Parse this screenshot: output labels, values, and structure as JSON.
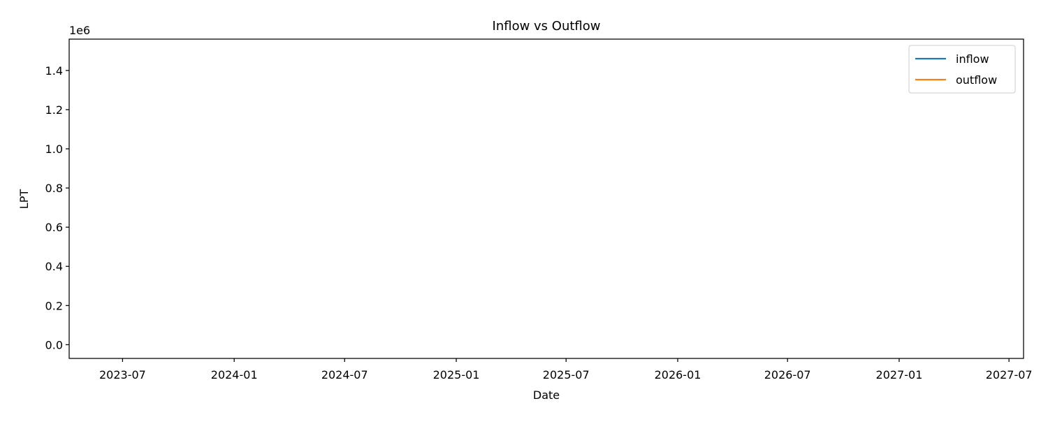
{
  "chart_data": {
    "type": "line",
    "title": "Inflow vs Outflow",
    "xlabel": "Date",
    "ylabel": "LPT",
    "y_offset_label": "1e6",
    "x_axis_type": "date",
    "xlim": [
      "2023-04-04",
      "2027-07-25"
    ],
    "ylim": [
      -70000,
      1560000
    ],
    "x_ticks": [
      {
        "value": "2023-07-01",
        "label": "2023-07"
      },
      {
        "value": "2024-01-01",
        "label": "2024-01"
      },
      {
        "value": "2024-07-01",
        "label": "2024-07"
      },
      {
        "value": "2025-01-01",
        "label": "2025-01"
      },
      {
        "value": "2025-07-01",
        "label": "2025-07"
      },
      {
        "value": "2026-01-01",
        "label": "2026-01"
      },
      {
        "value": "2026-07-01",
        "label": "2026-07"
      },
      {
        "value": "2027-01-01",
        "label": "2027-01"
      },
      {
        "value": "2027-07-01",
        "label": "2027-07"
      }
    ],
    "y_ticks": [
      {
        "value": 0,
        "label": "0.0"
      },
      {
        "value": 200000,
        "label": "0.2"
      },
      {
        "value": 400000,
        "label": "0.4"
      },
      {
        "value": 600000,
        "label": "0.6"
      },
      {
        "value": 800000,
        "label": "0.8"
      },
      {
        "value": 1000000,
        "label": "1.0"
      },
      {
        "value": 1200000,
        "label": "1.2"
      },
      {
        "value": 1400000,
        "label": "1.4"
      }
    ],
    "grid": false,
    "legend_position": "top-right",
    "series": [
      {
        "name": "inflow",
        "color": "#1f77b4",
        "x": [],
        "y": []
      },
      {
        "name": "outflow",
        "color": "#ff7f0e",
        "x": [],
        "y": []
      }
    ]
  }
}
